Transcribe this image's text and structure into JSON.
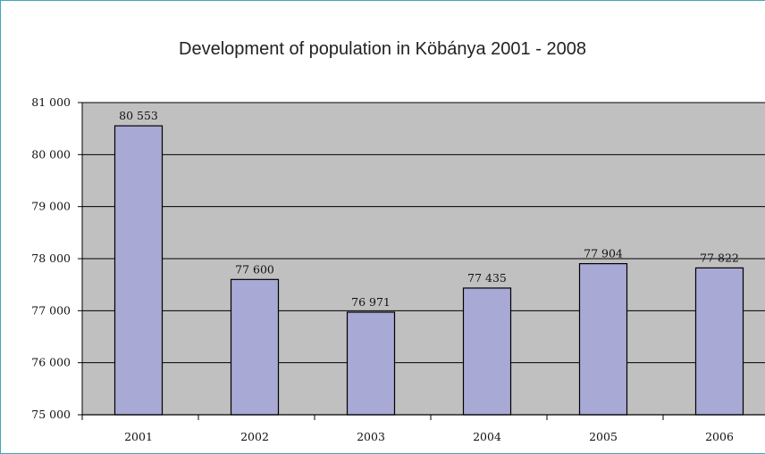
{
  "chart_data": {
    "type": "bar",
    "title": "Development of population in Köbánya 2001 - 2008",
    "categories": [
      "2001",
      "2002",
      "2003",
      "2004",
      "2005",
      "2006"
    ],
    "values": [
      80553,
      77600,
      76971,
      77435,
      77904,
      77822
    ],
    "value_labels": [
      "80 553",
      "77 600",
      "76 971",
      "77 435",
      "77 904",
      "77 822"
    ],
    "ylim": [
      75000,
      81000
    ],
    "yticks": [
      75000,
      76000,
      77000,
      78000,
      79000,
      80000,
      81000
    ],
    "ytick_labels": [
      "75 000",
      "76 000",
      "77 000",
      "78 000",
      "79 000",
      "80 000",
      "81 000"
    ],
    "xlabel": "",
    "ylabel": "",
    "grid": true,
    "colors": {
      "plot_background": "#c0c0c0",
      "bar_fill": "#a9a9d6",
      "bar_stroke": "#000000",
      "gridline": "#000000",
      "frame_border": "#3fa9b5"
    }
  }
}
